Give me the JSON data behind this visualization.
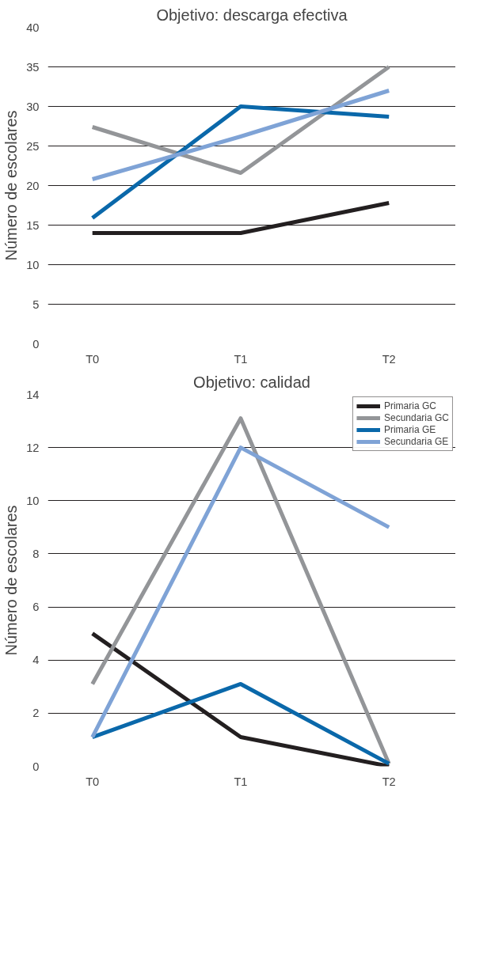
{
  "chart_data": [
    {
      "type": "line",
      "title": "Objetivo: descarga efectiva",
      "ylabel": "Número de escolares",
      "categories": [
        "T0",
        "T1",
        "T2"
      ],
      "ylim": [
        0,
        40
      ],
      "yticks": [
        0,
        5,
        10,
        15,
        20,
        25,
        30,
        35,
        40
      ],
      "grid": "y",
      "legend": false,
      "marker": "none",
      "line_style": "solid",
      "series": [
        {
          "color": "#231f20",
          "values": [
            14,
            14,
            17.8
          ]
        },
        {
          "color": "#939598",
          "values": [
            27.4,
            21.6,
            35
          ]
        },
        {
          "color": "#0a68aa",
          "values": [
            15.9,
            30,
            28.7
          ]
        },
        {
          "color": "#7fa3d6",
          "values": [
            20.8,
            26.2,
            32
          ]
        }
      ]
    },
    {
      "type": "line",
      "title": "Objetivo: calidad",
      "ylabel": "Número de escolares",
      "categories": [
        "T0",
        "T1",
        "T2"
      ],
      "ylim": [
        0,
        14
      ],
      "yticks": [
        0,
        2,
        4,
        6,
        8,
        10,
        12,
        14
      ],
      "grid": "y",
      "legend": "top right",
      "marker": "none",
      "line_style": "solid",
      "series": [
        {
          "name": "Primaria GC",
          "color": "#231f20",
          "values": [
            5,
            1.1,
            0
          ]
        },
        {
          "name": "Secundaria GC",
          "color": "#939598",
          "values": [
            3.1,
            13.1,
            0.1
          ]
        },
        {
          "name": "Primaria GE",
          "color": "#0a68aa",
          "values": [
            1.1,
            3.1,
            0.1
          ]
        },
        {
          "name": "Secundaria GE",
          "color": "#7fa3d6",
          "values": [
            1.1,
            12,
            9
          ]
        }
      ]
    }
  ]
}
